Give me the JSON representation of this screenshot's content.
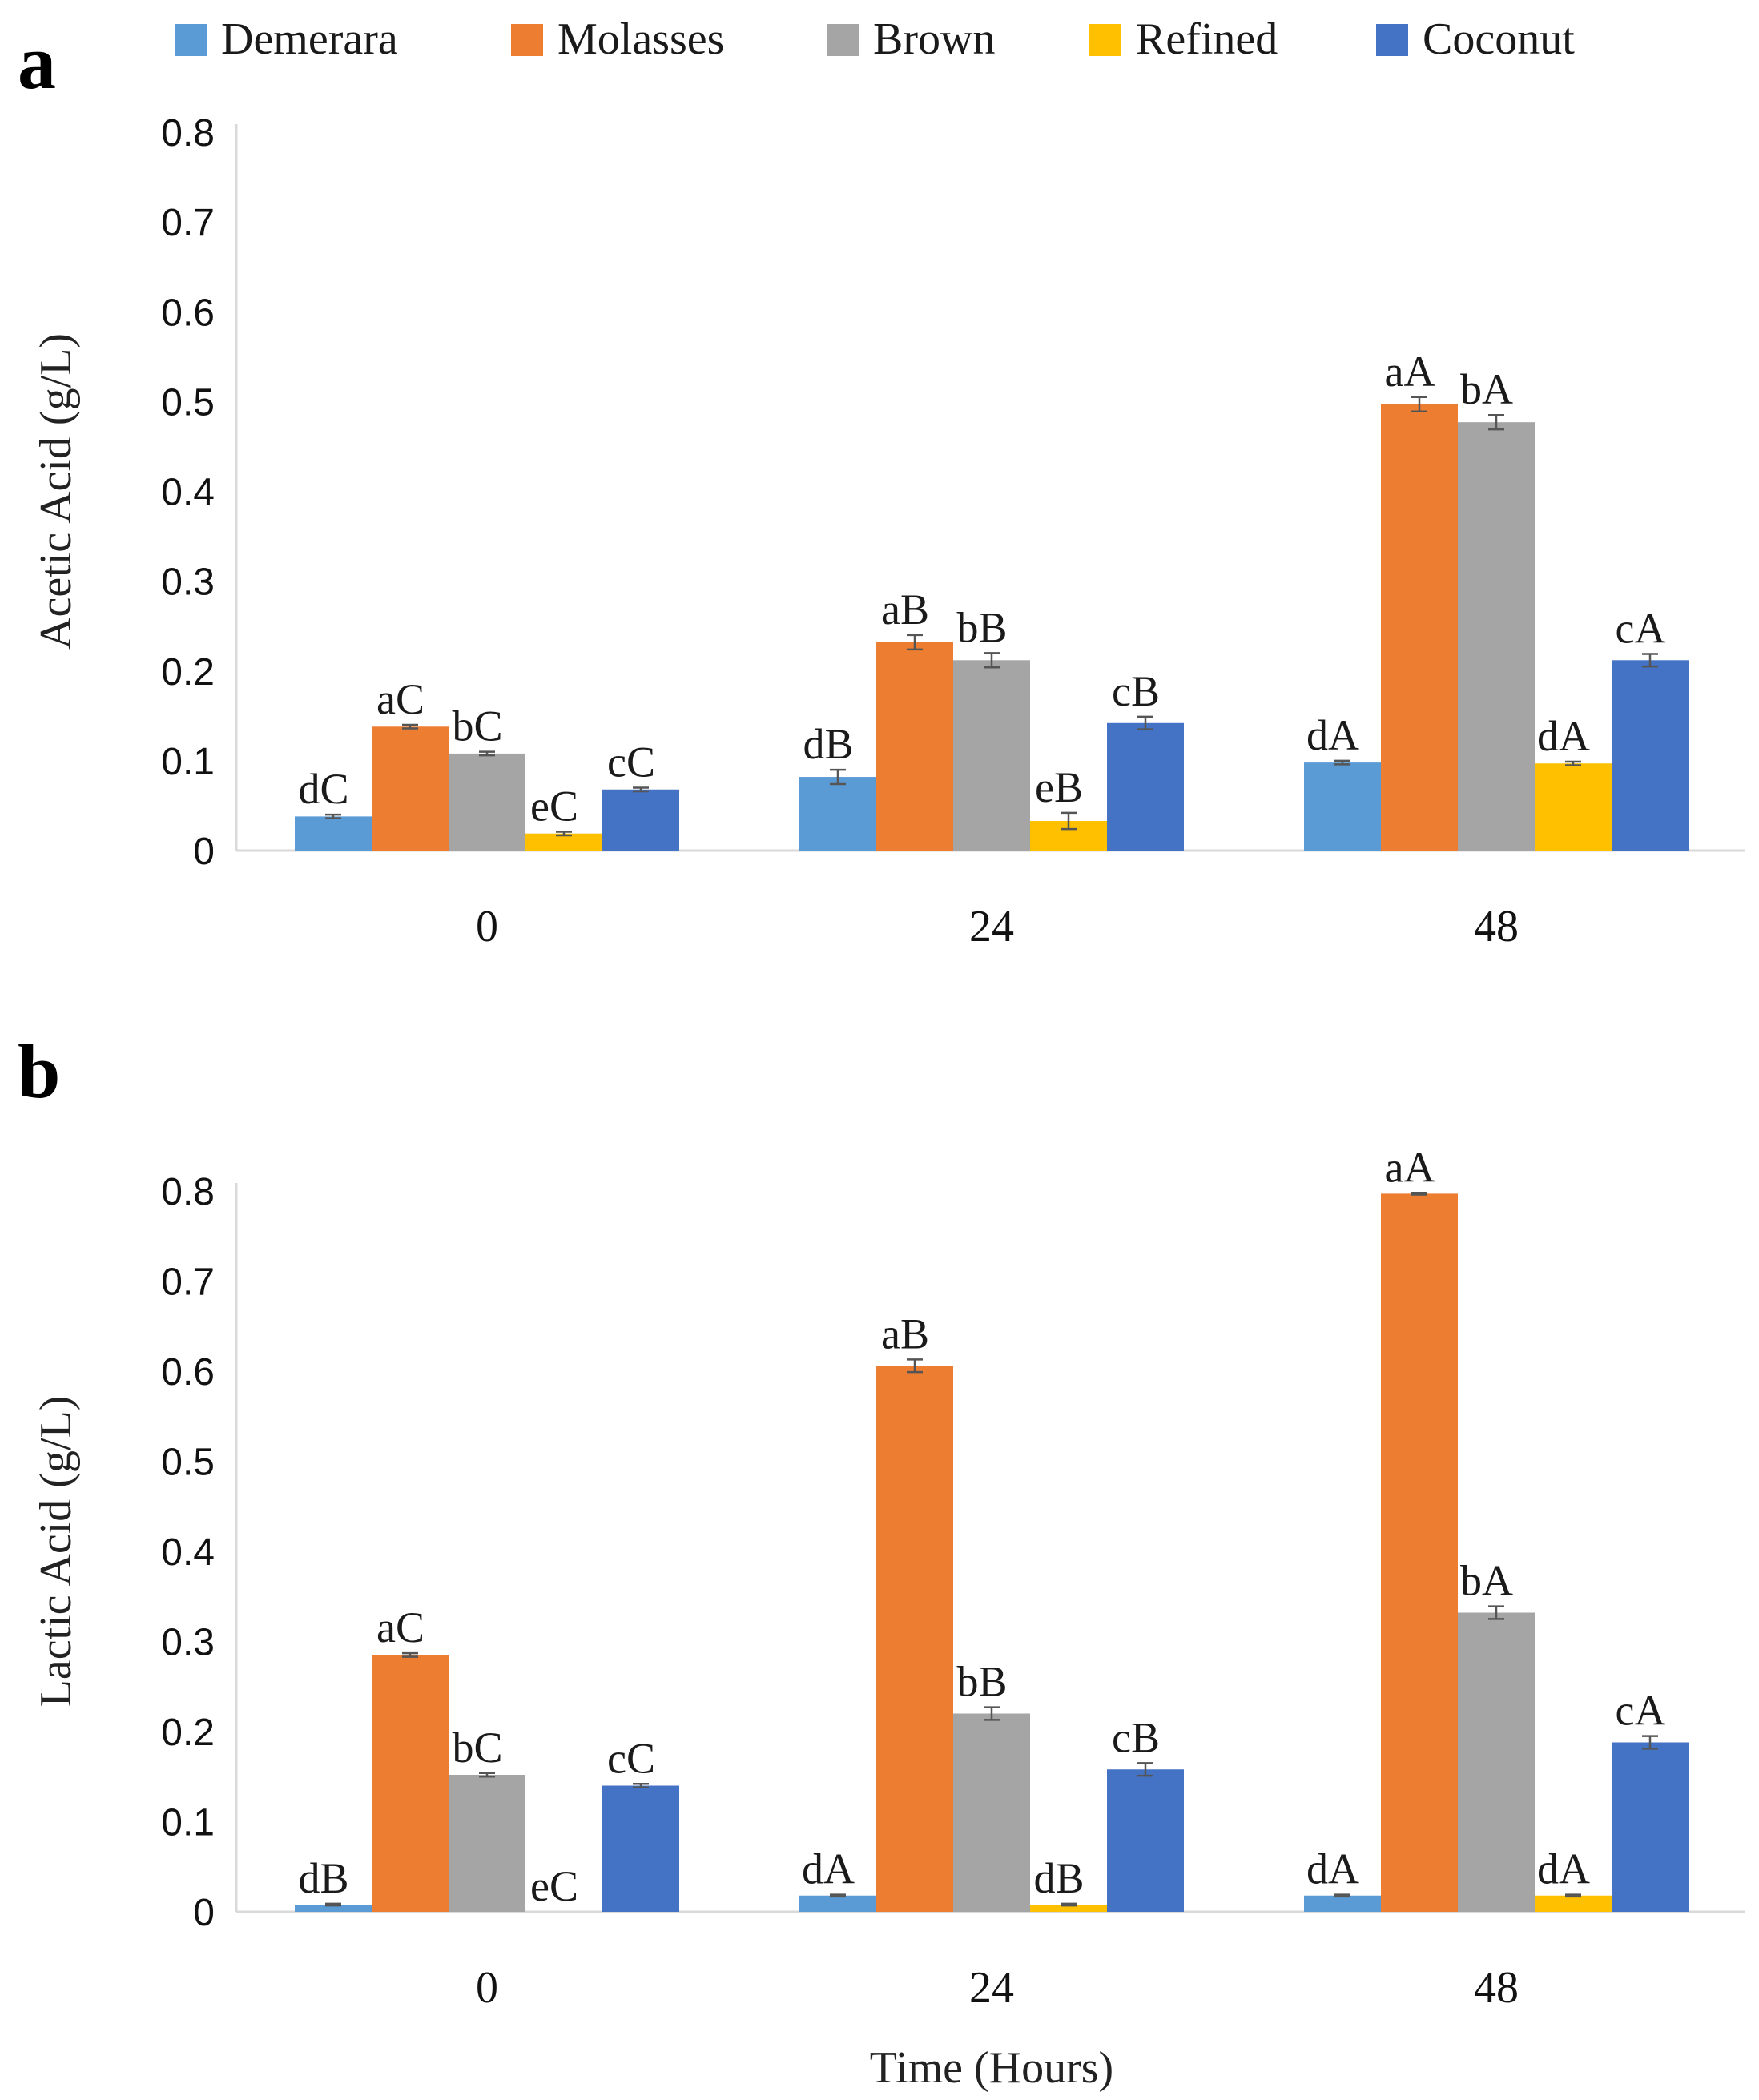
{
  "legend": [
    {
      "name": "Demerara",
      "color": "#5B9BD5"
    },
    {
      "name": "Molasses",
      "color": "#ED7D31"
    },
    {
      "name": "Brown",
      "color": "#A5A5A5"
    },
    {
      "name": "Refined",
      "color": "#FFC000"
    },
    {
      "name": "Coconut",
      "color": "#4472C4"
    }
  ],
  "chart_data": [
    {
      "type": "bar",
      "panel": "a",
      "ylabel": "Acetic Acid (g/L)",
      "xlabel": "",
      "categories": [
        "0",
        "24",
        "48"
      ],
      "ylim": [
        0,
        0.8
      ],
      "yticks": [
        "0",
        "0.1",
        "0.2",
        "0.3",
        "0.4",
        "0.5",
        "0.6",
        "0.7",
        "0.8"
      ],
      "grid": false,
      "legend_position": "top",
      "series": [
        {
          "name": "Demerara",
          "values": [
            0.038,
            0.082,
            0.098
          ],
          "errors": [
            0.002,
            0.008,
            0.002
          ],
          "labels": [
            "dC",
            "dB",
            "dA"
          ]
        },
        {
          "name": "Molasses",
          "values": [
            0.138,
            0.232,
            0.497
          ],
          "errors": [
            0.002,
            0.008,
            0.008
          ],
          "labels": [
            "aC",
            "aB",
            "aA"
          ]
        },
        {
          "name": "Brown",
          "values": [
            0.108,
            0.212,
            0.477
          ],
          "errors": [
            0.002,
            0.008,
            0.008
          ],
          "labels": [
            "bC",
            "bB",
            "bA"
          ]
        },
        {
          "name": "Refined",
          "values": [
            0.019,
            0.033,
            0.097
          ],
          "errors": [
            0.002,
            0.009,
            0.002
          ],
          "labels": [
            "eC",
            "eB",
            "dA"
          ]
        },
        {
          "name": "Coconut",
          "values": [
            0.068,
            0.142,
            0.212
          ],
          "errors": [
            0.002,
            0.007,
            0.007
          ],
          "labels": [
            "cC",
            "cB",
            "cA"
          ]
        }
      ]
    },
    {
      "type": "bar",
      "panel": "b",
      "ylabel": "Lactic Acid (g/L)",
      "xlabel": "Time (Hours)",
      "categories": [
        "0",
        "24",
        "48"
      ],
      "ylim": [
        0,
        0.8
      ],
      "yticks": [
        "0",
        "0.1",
        "0.2",
        "0.3",
        "0.4",
        "0.5",
        "0.6",
        "0.7",
        "0.8"
      ],
      "grid": false,
      "legend_position": "top",
      "series": [
        {
          "name": "Demerara",
          "values": [
            0.008,
            0.018,
            0.018
          ],
          "errors": [
            0.001,
            0.001,
            0.001
          ],
          "labels": [
            "dB",
            "dA",
            "dA"
          ]
        },
        {
          "name": "Molasses",
          "values": [
            0.285,
            0.606,
            0.797
          ],
          "errors": [
            0.002,
            0.007,
            0.001
          ],
          "labels": [
            "aC",
            "aB",
            "aA"
          ]
        },
        {
          "name": "Brown",
          "values": [
            0.152,
            0.22,
            0.332
          ],
          "errors": [
            0.002,
            0.007,
            0.007
          ],
          "labels": [
            "bC",
            "bB",
            "bA"
          ]
        },
        {
          "name": "Refined",
          "values": [
            0.0,
            0.008,
            0.018
          ],
          "errors": [
            0,
            0.001,
            0.001
          ],
          "labels": [
            "eC",
            "dB",
            "dA"
          ]
        },
        {
          "name": "Coconut",
          "values": [
            0.14,
            0.158,
            0.188
          ],
          "errors": [
            0.002,
            0.007,
            0.007
          ],
          "labels": [
            "cC",
            "cB",
            "cA"
          ]
        }
      ]
    }
  ]
}
